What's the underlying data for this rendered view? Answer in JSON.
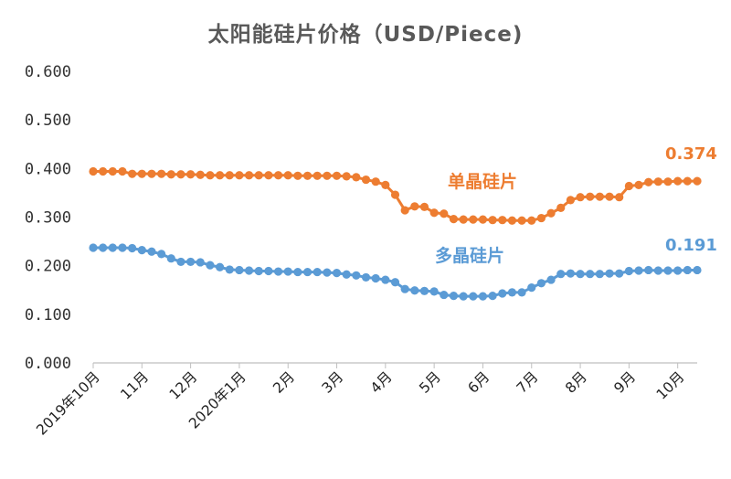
{
  "chart_data": {
    "type": "line",
    "title": "太阳能硅片价格（USD/Piece)",
    "ylim": [
      0,
      0.6
    ],
    "yticks": [
      "0.000",
      "0.100",
      "0.200",
      "0.300",
      "0.400",
      "0.500",
      "0.600"
    ],
    "xtick_labels": [
      "2019年10月",
      "11月",
      "12月",
      "2020年1月",
      "2月",
      "3月",
      "4月",
      "5月",
      "6月",
      "7月",
      "8月",
      "9月",
      "10月"
    ],
    "xtick_index": [
      0,
      5,
      10,
      15,
      20,
      25,
      30,
      35,
      40,
      45,
      50,
      55,
      60
    ],
    "n_points": 63,
    "grid": false,
    "legend": "none",
    "series": [
      {
        "name": "单晶硅片",
        "color": "#ED7D31",
        "end_label": "0.374",
        "values": [
          0.394,
          0.394,
          0.394,
          0.394,
          0.389,
          0.389,
          0.389,
          0.389,
          0.388,
          0.388,
          0.388,
          0.387,
          0.386,
          0.386,
          0.386,
          0.386,
          0.386,
          0.386,
          0.386,
          0.386,
          0.386,
          0.385,
          0.385,
          0.385,
          0.385,
          0.385,
          0.384,
          0.382,
          0.377,
          0.373,
          0.366,
          0.346,
          0.314,
          0.322,
          0.321,
          0.309,
          0.307,
          0.296,
          0.295,
          0.295,
          0.295,
          0.294,
          0.294,
          0.293,
          0.293,
          0.293,
          0.298,
          0.308,
          0.319,
          0.335,
          0.341,
          0.342,
          0.342,
          0.342,
          0.341,
          0.364,
          0.366,
          0.372,
          0.373,
          0.373,
          0.374,
          0.374,
          0.374
        ]
      },
      {
        "name": "多晶硅片",
        "color": "#5B9BD5",
        "end_label": "0.191",
        "values": [
          0.237,
          0.237,
          0.237,
          0.237,
          0.236,
          0.232,
          0.229,
          0.224,
          0.215,
          0.208,
          0.208,
          0.207,
          0.201,
          0.197,
          0.192,
          0.191,
          0.19,
          0.189,
          0.189,
          0.188,
          0.188,
          0.187,
          0.187,
          0.187,
          0.186,
          0.185,
          0.182,
          0.18,
          0.176,
          0.174,
          0.171,
          0.166,
          0.152,
          0.149,
          0.148,
          0.147,
          0.14,
          0.138,
          0.137,
          0.137,
          0.137,
          0.138,
          0.143,
          0.145,
          0.145,
          0.155,
          0.164,
          0.171,
          0.183,
          0.184,
          0.183,
          0.183,
          0.183,
          0.184,
          0.184,
          0.189,
          0.19,
          0.191,
          0.19,
          0.19,
          0.19,
          0.191,
          0.191
        ]
      }
    ]
  }
}
